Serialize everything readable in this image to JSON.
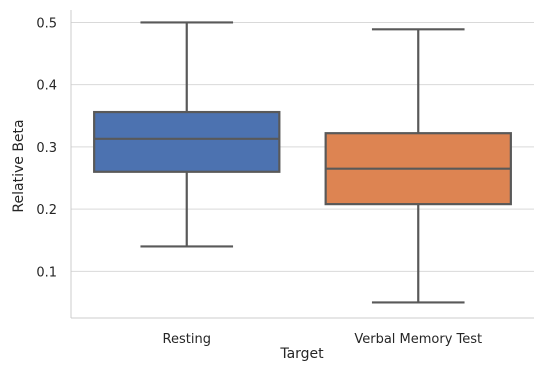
{
  "chart_data": {
    "type": "box",
    "title": "",
    "xlabel": "Target",
    "ylabel": "Relative Beta",
    "categories": [
      "Resting",
      "Verbal Memory Test"
    ],
    "boxes": [
      {
        "category": "Resting",
        "whisker_low": 0.14,
        "q1": 0.26,
        "median": 0.313,
        "q3": 0.356,
        "whisker_high": 0.5,
        "color": "#4C72B0"
      },
      {
        "category": "Verbal Memory Test",
        "whisker_low": 0.05,
        "q1": 0.208,
        "median": 0.265,
        "q3": 0.322,
        "whisker_high": 0.489,
        "color": "#DD8452"
      }
    ],
    "yticks": [
      "0.1",
      "0.2",
      "0.3",
      "0.4",
      "0.5"
    ],
    "ylim": [
      0.025,
      0.52
    ],
    "grid": true,
    "style_colors": {
      "line": "#595959",
      "grid": "#d9d9d9",
      "spine": "#cccccc",
      "background": "#ffffff"
    }
  }
}
